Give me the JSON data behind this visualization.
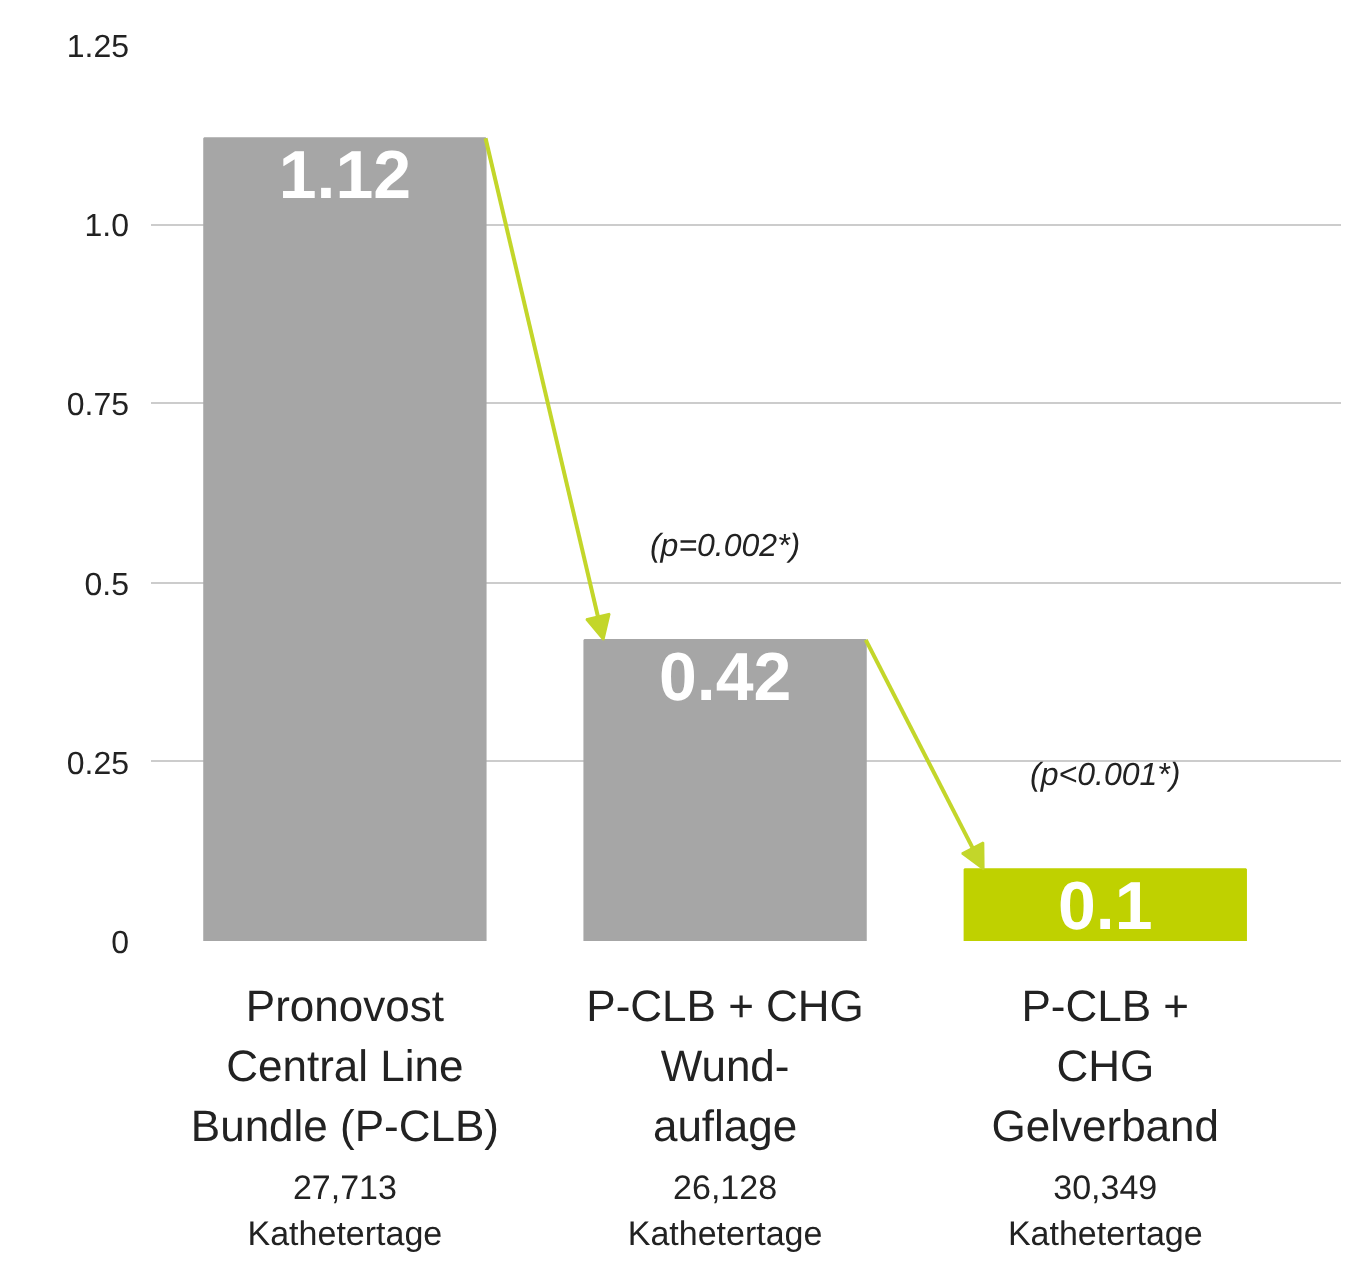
{
  "chart_data": {
    "type": "bar",
    "categories": [
      "Pronovost\nCentral Line\nBundle (P-CLB)",
      "P-CLB + CHG\nWund-\nauflage",
      "P-CLB +\nCHG\nGelverband"
    ],
    "values": [
      1.12,
      0.42,
      0.1
    ],
    "colors": [
      "#a6a6a6",
      "#a6a6a6",
      "#bfd100"
    ],
    "ylim": [
      0,
      1.25
    ],
    "yticks": [
      0,
      {
        "value": 0.25,
        "label": "0.25"
      },
      {
        "value": 0.5,
        "label": "0.5"
      },
      {
        "value": 0.75,
        "label": "0.75"
      },
      {
        "value": 1.0,
        "label": "1.0"
      },
      {
        "value": 1.25,
        "label": "1.25"
      }
    ],
    "grid": "y",
    "data_labels": true,
    "annotations": [
      "27,713\nKathetertage",
      "26,128\nKathetertage",
      "30,349\nKathetertage",
      "(p=0.002*)",
      "(p<0.001*)"
    ]
  }
}
